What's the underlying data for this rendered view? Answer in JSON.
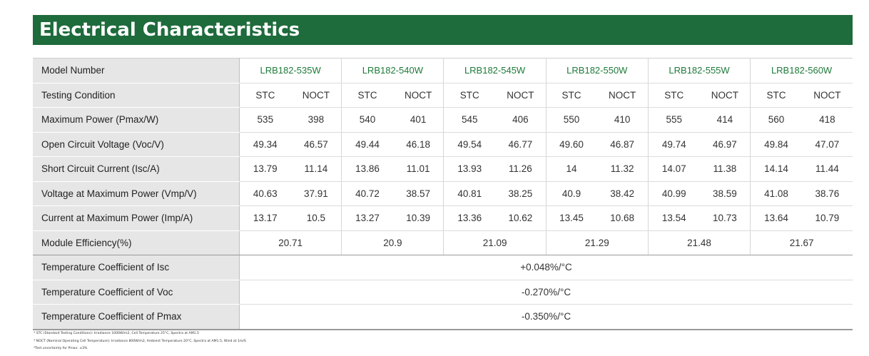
{
  "title": "Electrical Characteristics",
  "rows": {
    "model_label": "Model Number",
    "models": [
      "LRB182-535W",
      "LRB182-540W",
      "LRB182-545W",
      "LRB182-550W",
      "LRB182-555W",
      "LRB182-560W"
    ],
    "testing_label": "Testing Condition",
    "stc": "STC",
    "noct": "NOCT",
    "pmax_label": "Maximum Power (Pmax/W)",
    "pmax": [
      [
        "535",
        "398"
      ],
      [
        "540",
        "401"
      ],
      [
        "545",
        "406"
      ],
      [
        "550",
        "410"
      ],
      [
        "555",
        "414"
      ],
      [
        "560",
        "418"
      ]
    ],
    "voc_label": "Open Circuit Voltage (Voc/V)",
    "voc": [
      [
        "49.34",
        "46.57"
      ],
      [
        "49.44",
        "46.18"
      ],
      [
        "49.54",
        "46.77"
      ],
      [
        "49.60",
        "46.87"
      ],
      [
        "49.74",
        "46.97"
      ],
      [
        "49.84",
        "47.07"
      ]
    ],
    "isc_label": "Short Circuit Current (Isc/A)",
    "isc": [
      [
        "13.79",
        "11.14"
      ],
      [
        "13.86",
        "11.01"
      ],
      [
        "13.93",
        "11.26"
      ],
      [
        "14",
        "11.32"
      ],
      [
        "14.07",
        "11.38"
      ],
      [
        "14.14",
        "11.44"
      ]
    ],
    "vmp_label": "Voltage at Maximum Power (Vmp/V)",
    "vmp": [
      [
        "40.63",
        "37.91"
      ],
      [
        "40.72",
        "38.57"
      ],
      [
        "40.81",
        "38.25"
      ],
      [
        "40.9",
        "38.42"
      ],
      [
        "40.99",
        "38.59"
      ],
      [
        "41.08",
        "38.76"
      ]
    ],
    "imp_label": "Current at Maximum Power (Imp/A)",
    "imp": [
      [
        "13.17",
        "10.5"
      ],
      [
        "13.27",
        "10.39"
      ],
      [
        "13.36",
        "10.62"
      ],
      [
        "13.45",
        "10.68"
      ],
      [
        "13.54",
        "10.73"
      ],
      [
        "13.64",
        "10.79"
      ]
    ],
    "eff_label": "Module Efficiency(%)",
    "eff": [
      "20.71",
      "20.9",
      "21.09",
      "21.29",
      "21.48",
      "21.67"
    ],
    "tc_isc_label": "Temperature Coefficient of Isc",
    "tc_isc": "+0.048%/°C",
    "tc_voc_label": "Temperature Coefficient of Voc",
    "tc_voc": "-0.270%/°C",
    "tc_pmax_label": "Temperature Coefficient of Pmax",
    "tc_pmax": "-0.350%/°C"
  },
  "footnotes": [
    "* STC (Standard Testing Conditions): Irradiance 1000W/m2, Cell Temperature 25°C, Spectra at AM1.5",
    "* NOCT (Nominal Operating Cell Temperature): Irradiance 800W/m2, Ambient Temperature 20°C, Spectra at AM1.5, Wind at 1m/S",
    "*Test uncertainty for Pmax: ±3%"
  ]
}
